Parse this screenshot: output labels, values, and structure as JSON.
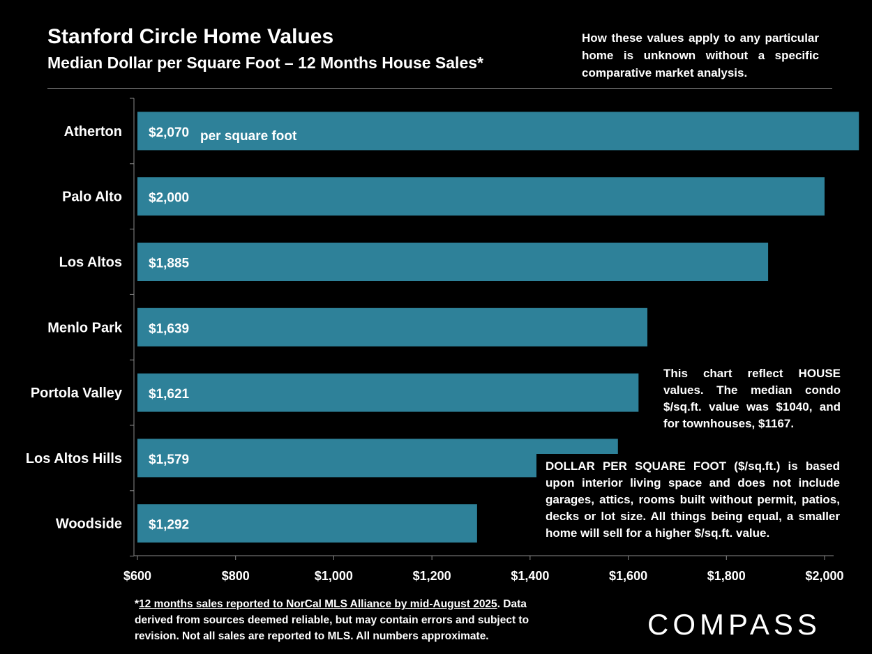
{
  "chart_data": {
    "type": "bar",
    "orientation": "horizontal",
    "title": "Stanford Circle Home Values",
    "subtitle": "Median Dollar per Square Foot – 12 Months House Sales*",
    "categories": [
      "Atherton",
      "Palo Alto",
      "Los Altos",
      "Menlo Park",
      "Portola Valley",
      "Los Altos Hills",
      "Woodside"
    ],
    "values": [
      2070,
      2000,
      1885,
      1639,
      1621,
      1579,
      1292
    ],
    "data_labels": [
      "$2,070",
      "$2,000",
      "$1,885",
      "$1,639",
      "$1,621",
      "$1,579",
      "$1,292"
    ],
    "first_label_suffix": "per square foot",
    "xlim": [
      600,
      2000
    ],
    "xticks": [
      600,
      800,
      1000,
      1200,
      1400,
      1600,
      1800,
      2000
    ],
    "xtick_labels": [
      "$600",
      "$800",
      "$1,000",
      "$1,200",
      "$1,400",
      "$1,600",
      "$1,800",
      "$2,000"
    ],
    "xlabel": "",
    "ylabel": "",
    "grid": false,
    "bar_color": "#2e8199"
  },
  "notes": {
    "top_right": "How these values apply to any particular home is unknown without a specific comparative market analysis.",
    "house_note": "This chart reflect HOUSE values. The median condo $/sq.ft. value was $1040, and for townhouses, $1167.",
    "definition": "DOLLAR PER SQUARE FOOT ($/sq.ft.) is based upon interior living space and does not include garages, attics, rooms built without permit, patios, decks or lot size. All things being equal, a smaller home will sell for a higher $/sq.ft. value."
  },
  "footnote": {
    "prefix": "*",
    "underlined": "12 months sales reported to NorCal MLS Alliance by mid-August 2025",
    "rest": ". Data derived from sources deemed reliable, but may contain errors and subject to revision. Not all sales are reported to MLS. All numbers approximate."
  },
  "logo": "COMPASS"
}
